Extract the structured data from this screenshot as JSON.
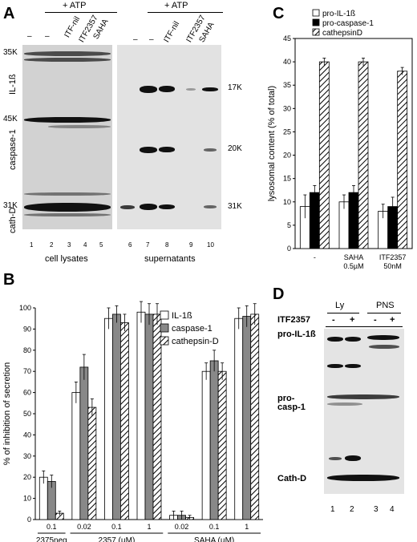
{
  "panel_letters": {
    "a": "A",
    "b": "B",
    "c": "C",
    "d": "D"
  },
  "panel_a": {
    "atp_left": "+ ATP",
    "atp_right": "+ ATP",
    "lane_headers_left": [
      "–",
      "–",
      "ITF-nil",
      "ITF2357",
      "SAHA"
    ],
    "lane_headers_right": [
      "–",
      "–",
      "ITF-nil",
      "ITF2357",
      "SAHA"
    ],
    "mw_left": [
      "35K",
      "45K",
      "31K"
    ],
    "row_labels": [
      "IL-1ß",
      "caspase-1",
      "cath-D"
    ],
    "mw_right": [
      "17K",
      "20K",
      "31K"
    ],
    "lane_numbers": [
      "1",
      "2",
      "3",
      "4",
      "5",
      "6",
      "7",
      "8",
      "9",
      "10"
    ],
    "group_labels": [
      "cell lysates",
      "supernatants"
    ]
  },
  "panel_d": {
    "ly": "Ly",
    "pns": "PNS",
    "treatment": "ITF2357",
    "signs": [
      "-",
      "+",
      "-",
      "+"
    ],
    "rows": [
      "pro-IL-1ß",
      "pro-casp-1",
      "Cath-D"
    ],
    "lanes": [
      "1",
      "2",
      "3",
      "4"
    ]
  },
  "chart_data": [
    {
      "panel": "B",
      "type": "bar",
      "ylabel": "% of inhibition of secretion",
      "ylim": [
        0,
        100
      ],
      "yticks": [
        0,
        10,
        20,
        30,
        40,
        50,
        60,
        70,
        80,
        90,
        100
      ],
      "legend_position": "top-right",
      "series": [
        {
          "name": "IL-1ß",
          "color": "#ffffff",
          "pattern": "none"
        },
        {
          "name": "caspase-1",
          "color": "#888888",
          "pattern": "none"
        },
        {
          "name": "cathepsin-D",
          "color": "#ffffff",
          "pattern": "hatch"
        }
      ],
      "categories": [
        "0.1",
        "0.02",
        "0.1",
        "1",
        "0.02",
        "0.1",
        "1"
      ],
      "values": [
        [
          20,
          18,
          3
        ],
        [
          60,
          72,
          53
        ],
        [
          95,
          97,
          93
        ],
        [
          98,
          97,
          97
        ],
        [
          2,
          2,
          1
        ],
        [
          70,
          75,
          70
        ],
        [
          95,
          96,
          97
        ]
      ],
      "errors": [
        [
          3,
          3,
          1
        ],
        [
          5,
          6,
          4
        ],
        [
          5,
          4,
          4
        ],
        [
          5,
          5,
          5
        ],
        [
          2,
          2,
          1
        ],
        [
          4,
          5,
          4
        ],
        [
          5,
          5,
          5
        ]
      ],
      "groups": [
        {
          "label": "2375neg",
          "span": [
            0,
            0
          ]
        },
        {
          "label": "2357 (µM)",
          "span": [
            1,
            3
          ]
        },
        {
          "label": "SAHA (µM)",
          "span": [
            4,
            6
          ]
        }
      ]
    },
    {
      "panel": "C",
      "type": "bar",
      "ylabel": "lysosomal content (% of total)",
      "ylim": [
        0,
        45
      ],
      "yticks": [
        0,
        5,
        10,
        15,
        20,
        25,
        30,
        35,
        40,
        45
      ],
      "legend_position": "top",
      "series": [
        {
          "name": "pro-IL-1ß",
          "color": "#ffffff",
          "pattern": "none"
        },
        {
          "name": "pro-caspase-1",
          "color": "#000000",
          "pattern": "none"
        },
        {
          "name": "cathepsinD",
          "color": "#ffffff",
          "pattern": "hatch"
        }
      ],
      "categories": [
        "-",
        "SAHA\n0.5µM",
        "ITF2357\n50nM"
      ],
      "values": [
        [
          9,
          12,
          40
        ],
        [
          10,
          12,
          40
        ],
        [
          8,
          9,
          38
        ]
      ],
      "errors": [
        [
          2.5,
          1.5,
          0.8
        ],
        [
          1.5,
          1.5,
          0.8
        ],
        [
          1.5,
          2,
          0.8
        ]
      ]
    }
  ]
}
